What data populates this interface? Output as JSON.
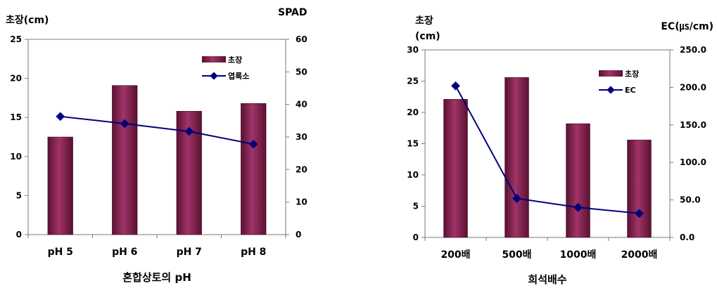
{
  "charts": {
    "left": {
      "y_left_title": "초장(cm)",
      "y_right_title": "SPAD",
      "xlabel": "혼합상토의 pH",
      "legend": [
        "초장",
        "엽록소"
      ]
    },
    "right": {
      "y_left_title_line1": "초장",
      "y_left_title_line2": "(cm)",
      "y_right_title": "EC(㎲/cm)",
      "xlabel": "희석배수",
      "legend": [
        "초장",
        "EC"
      ]
    }
  },
  "chart_data": [
    {
      "type": "bar+line",
      "xlabel": "혼합상토의 pH",
      "ylabel": "초장(cm)",
      "y2label": "SPAD",
      "categories": [
        "pH 5",
        "pH 6",
        "pH 7",
        "pH 8"
      ],
      "ylim": [
        0,
        25
      ],
      "y2lim": [
        0,
        60
      ],
      "yticks": [
        "0",
        "5",
        "10",
        "15",
        "20",
        "25"
      ],
      "y2ticks": [
        "0",
        "10",
        "20",
        "30",
        "40",
        "50",
        "60"
      ],
      "series": [
        {
          "name": "초장",
          "type": "bar",
          "axis": "left",
          "color": "#8b2252",
          "values": [
            12.5,
            19.1,
            15.8,
            16.8
          ]
        },
        {
          "name": "엽록소",
          "type": "line",
          "axis": "right",
          "color": "#000080",
          "values": [
            36.3,
            34.1,
            31.7,
            27.8
          ]
        }
      ],
      "legend_position": "top-right",
      "grid": false
    },
    {
      "type": "bar+line",
      "xlabel": "희석배수",
      "ylabel": "초장 (cm)",
      "y2label": "EC(㎲/cm)",
      "categories": [
        "200배",
        "500배",
        "1000배",
        "2000배"
      ],
      "ylim": [
        0,
        30
      ],
      "y2lim": [
        0,
        250
      ],
      "yticks": [
        "0",
        "5",
        "10",
        "15",
        "20",
        "25",
        "30"
      ],
      "y2ticks": [
        "0.0",
        "50.0",
        "100.0",
        "150.0",
        "200.0",
        "250.0"
      ],
      "series": [
        {
          "name": "초장",
          "type": "bar",
          "axis": "left",
          "color": "#8b2252",
          "values": [
            22.1,
            25.6,
            18.2,
            15.6
          ]
        },
        {
          "name": "EC",
          "type": "line",
          "axis": "right",
          "color": "#000080",
          "values": [
            202,
            52,
            40,
            32
          ]
        }
      ],
      "legend_position": "top-right",
      "grid": false
    }
  ]
}
